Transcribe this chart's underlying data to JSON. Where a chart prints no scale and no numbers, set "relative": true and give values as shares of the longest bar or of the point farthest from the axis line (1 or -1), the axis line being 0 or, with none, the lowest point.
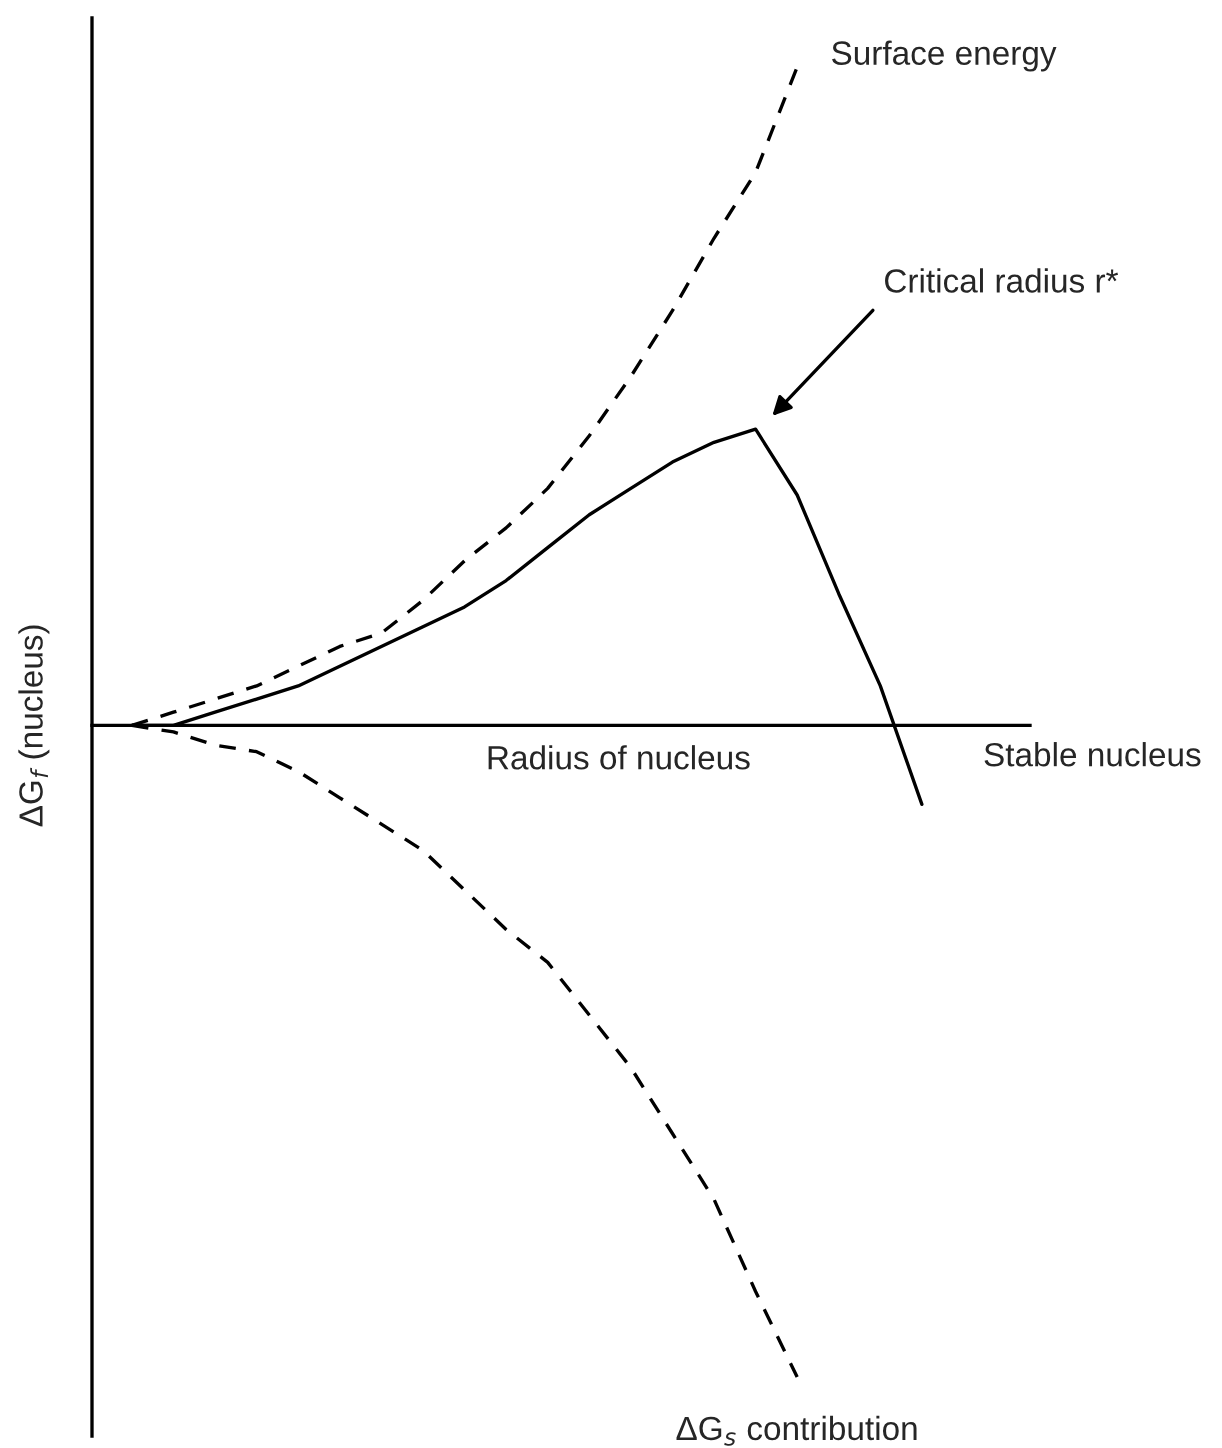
{
  "chart_data": {
    "type": "line",
    "relative": true,
    "xlabel": "Radius of nucleus",
    "ylabel": "ΔG$_{f}$ (nucleus)",
    "categories": [
      null,
      null,
      null,
      null,
      null,
      null,
      null,
      null,
      null,
      null,
      null,
      null,
      null,
      null,
      null,
      null,
      null,
      null,
      null,
      null
    ],
    "series": [
      {
        "name": "Surface energy",
        "color": "#000000",
        "line_style": "dashed",
        "values": [
          0,
          0.02,
          0.04,
          0.06,
          0.09,
          0.12,
          0.14,
          0.19,
          0.25,
          0.3,
          0.36,
          0.44,
          0.53,
          0.63,
          0.74,
          0.84,
          1,
          null,
          null,
          null
        ]
      },
      {
        "color": "#000000",
        "line_style": "solid",
        "values": [
          0,
          0,
          0.02,
          0.04,
          0.06,
          0.09,
          0.12,
          0.15,
          0.18,
          0.22,
          0.27,
          0.32,
          0.36,
          0.4,
          0.43,
          0.45,
          0.35,
          0.2,
          0.06,
          -0.12
        ]
      },
      {
        "name": "ΔG$_{s}$ contribution",
        "color": "#000000",
        "line_style": "dashed",
        "values": [
          0,
          -0.01,
          -0.03,
          -0.04,
          -0.07,
          -0.11,
          -0.15,
          -0.19,
          -0.25,
          -0.31,
          -0.36,
          -0.44,
          -0.52,
          -0.62,
          -0.72,
          -0.86,
          -0.99,
          null,
          null,
          null
        ]
      }
    ],
    "annotations": [
      "Critical radius r*",
      "Stable nucleus"
    ]
  }
}
